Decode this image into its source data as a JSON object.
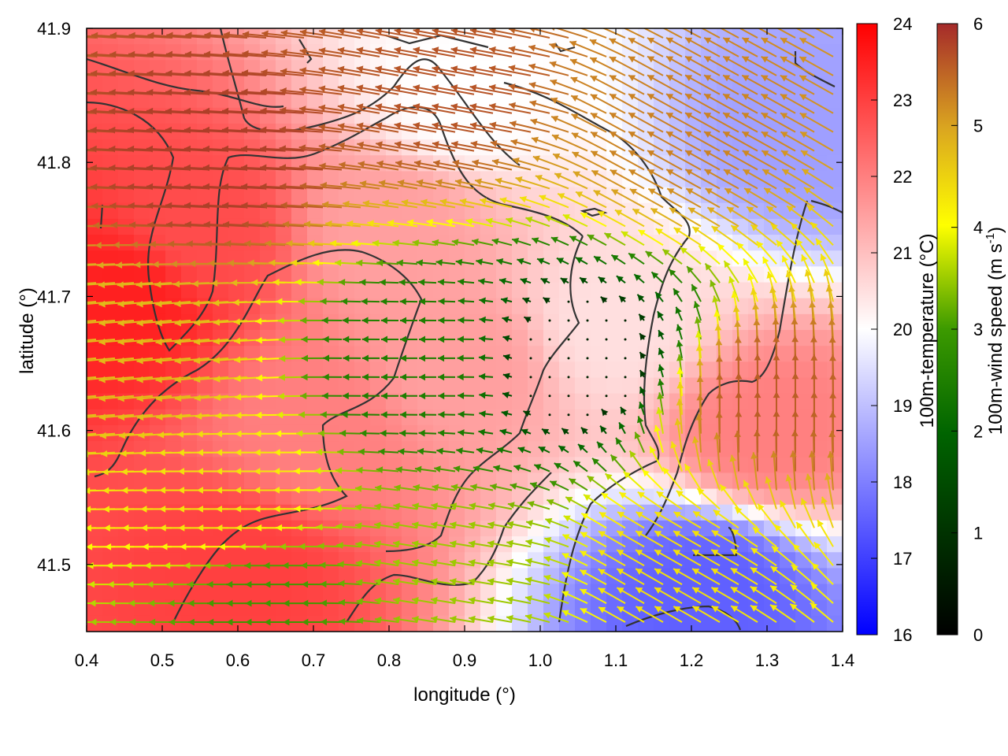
{
  "chart_data": {
    "type": "heatmap",
    "title": "",
    "xlabel": "longitude (°)",
    "ylabel": "latitude (°)",
    "xlim": [
      0.4,
      1.4
    ],
    "ylim": [
      41.45,
      41.9
    ],
    "xticks": [
      "0.4",
      "0.5",
      "0.6",
      "0.7",
      "0.8",
      "0.9",
      "1.0",
      "1.1",
      "1.2",
      "1.3",
      "1.4"
    ],
    "yticks": [
      "41.5",
      "41.6",
      "41.7",
      "41.8",
      "41.9"
    ],
    "grid": false,
    "temperature_colorbar": {
      "label": "100m-temperature (°C)",
      "range": [
        16,
        24
      ],
      "ticks": [
        "16",
        "17",
        "18",
        "19",
        "20",
        "21",
        "22",
        "23",
        "24"
      ],
      "colors": [
        "#0000ff",
        "#ffffff",
        "#ff0000"
      ]
    },
    "wind_colorbar": {
      "label_main": "100m-wind speed (m s",
      "label_sup": "-1",
      "label_close": ")",
      "range": [
        0,
        6
      ],
      "ticks": [
        "0",
        "1",
        "2",
        "3",
        "4",
        "5",
        "6"
      ],
      "colors": [
        "#000000",
        "#006400",
        "#2e8b00",
        "#ffff00",
        "#daa520",
        "#a52a2a"
      ]
    },
    "temperature_zones": [
      {
        "lon": 0.55,
        "lat": 41.75,
        "temp": 22.8
      },
      {
        "lon": 0.45,
        "lat": 41.7,
        "temp": 23.5
      },
      {
        "lon": 0.6,
        "lat": 41.5,
        "temp": 23.0
      },
      {
        "lon": 0.7,
        "lat": 41.6,
        "temp": 22.0
      },
      {
        "lon": 0.9,
        "lat": 41.65,
        "temp": 21.5
      },
      {
        "lon": 1.1,
        "lat": 41.68,
        "temp": 20.5
      },
      {
        "lon": 1.3,
        "lat": 41.6,
        "temp": 22.0
      },
      {
        "lon": 1.22,
        "lat": 41.48,
        "temp": 17.5
      },
      {
        "lon": 1.35,
        "lat": 41.82,
        "temp": 18.5
      },
      {
        "lon": 0.9,
        "lat": 41.85,
        "temp": 20.0
      },
      {
        "lon": 0.8,
        "lat": 41.75,
        "temp": 21.5
      }
    ],
    "wind_regimes": [
      {
        "lon": 0.6,
        "lat": 41.8,
        "u": -5.8,
        "v": 0.3
      },
      {
        "lon": 0.9,
        "lat": 41.85,
        "u": -5.5,
        "v": 1.0
      },
      {
        "lon": 1.2,
        "lat": 41.82,
        "u": -4.5,
        "v": 2.5
      },
      {
        "lon": 0.5,
        "lat": 41.65,
        "u": -4.5,
        "v": -0.4
      },
      {
        "lon": 0.6,
        "lat": 41.55,
        "u": -4.0,
        "v": 0.0
      },
      {
        "lon": 0.85,
        "lat": 41.65,
        "u": -2.0,
        "v": 0.0
      },
      {
        "lon": 1.05,
        "lat": 41.65,
        "u": -0.3,
        "v": 0.3
      },
      {
        "lon": 1.3,
        "lat": 41.6,
        "u": 0.0,
        "v": 5.5
      },
      {
        "lon": 1.2,
        "lat": 41.5,
        "u": -3.5,
        "v": 2.0
      },
      {
        "lon": 0.9,
        "lat": 41.5,
        "u": -3.0,
        "v": 0.5
      },
      {
        "lon": 0.65,
        "lat": 41.47,
        "u": -2.5,
        "v": 0.0
      }
    ]
  }
}
